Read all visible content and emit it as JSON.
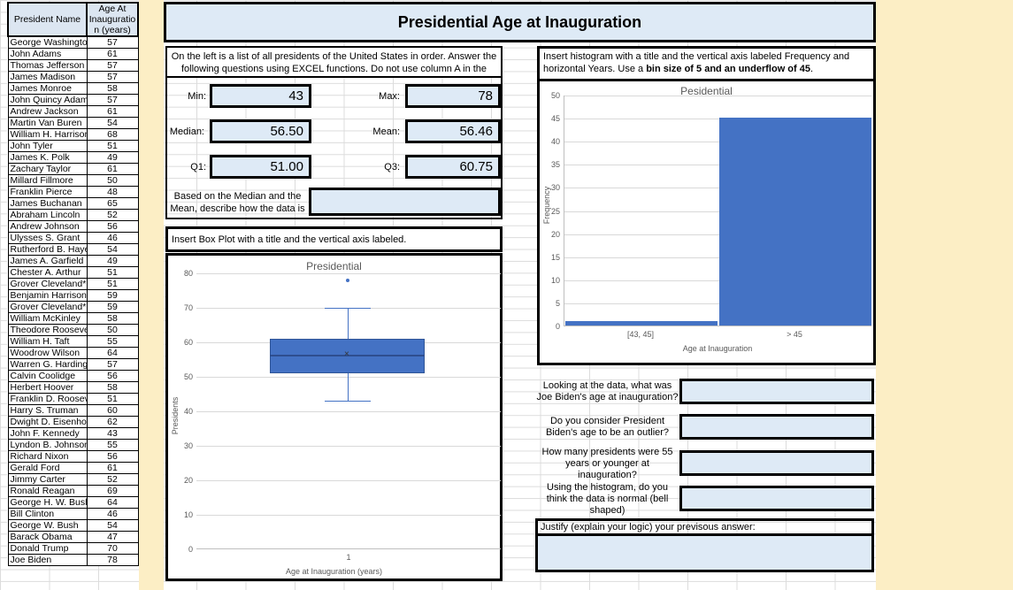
{
  "sheet": {
    "title": "Presidential Age at Inauguration"
  },
  "table": {
    "headers": [
      "President Name",
      "Age At Inauguration (years)"
    ],
    "rows": [
      [
        "George Washington",
        "57"
      ],
      [
        "John Adams",
        "61"
      ],
      [
        "Thomas Jefferson",
        "57"
      ],
      [
        "James Madison",
        "57"
      ],
      [
        "James Monroe",
        "58"
      ],
      [
        "John Quincy Adams",
        "57"
      ],
      [
        "Andrew Jackson",
        "61"
      ],
      [
        "Martin Van Buren",
        "54"
      ],
      [
        "William H. Harrison",
        "68"
      ],
      [
        "John Tyler",
        "51"
      ],
      [
        "James K. Polk",
        "49"
      ],
      [
        "Zachary Taylor",
        "61"
      ],
      [
        "Millard Fillmore",
        "50"
      ],
      [
        "Franklin Pierce",
        "48"
      ],
      [
        "James Buchanan",
        "65"
      ],
      [
        "Abraham Lincoln",
        "52"
      ],
      [
        "Andrew Johnson",
        "56"
      ],
      [
        "Ulysses S. Grant",
        "46"
      ],
      [
        "Rutherford B. Hayes",
        "54"
      ],
      [
        "James A. Garfield",
        "49"
      ],
      [
        "Chester A. Arthur",
        "51"
      ],
      [
        "Grover Cleveland*",
        "51"
      ],
      [
        "Benjamin Harrison",
        "59"
      ],
      [
        "Grover Cleveland*",
        "59"
      ],
      [
        "William McKinley",
        "58"
      ],
      [
        "Theodore Roosevelt",
        "50"
      ],
      [
        "William H. Taft",
        "55"
      ],
      [
        "Woodrow Wilson",
        "64"
      ],
      [
        "Warren G. Harding",
        "57"
      ],
      [
        "Calvin Coolidge",
        "56"
      ],
      [
        "Herbert Hoover",
        "58"
      ],
      [
        "Franklin D. Roosevelt",
        "51"
      ],
      [
        "Harry S. Truman",
        "60"
      ],
      [
        "Dwight D. Eisenhower",
        "62"
      ],
      [
        "John F. Kennedy",
        "43"
      ],
      [
        "Lyndon B. Johnson",
        "55"
      ],
      [
        "Richard Nixon",
        "56"
      ],
      [
        "Gerald Ford",
        "61"
      ],
      [
        "Jimmy Carter",
        "52"
      ],
      [
        "Ronald Reagan",
        "69"
      ],
      [
        "George H. W. Bush",
        "64"
      ],
      [
        "Bill Clinton",
        "46"
      ],
      [
        "George W. Bush",
        "54"
      ],
      [
        "Barack Obama",
        "47"
      ],
      [
        "Donald Trump",
        "70"
      ],
      [
        "Joe Biden",
        "78"
      ]
    ]
  },
  "left_panel": {
    "instruction_line1": "On the left is a list of all presidents of the United States in order.   Answer the",
    "instruction_line2": "following questions using EXCEL functions.  Do not use column A in the",
    "stats": {
      "min_label": "Min:",
      "min_value": "43",
      "max_label": "Max:",
      "max_value": "78",
      "median_label": "Median:",
      "median_value": "56.50",
      "mean_label": "Mean:",
      "mean_value": "56.46",
      "q1_label": "Q1:",
      "q1_value": "51.00",
      "q3_label": "Q3:",
      "q3_value": "60.75"
    },
    "describe_prompt": "Based on the Median and the Mean, describe how the data is",
    "describe_answer": "",
    "boxplot_instruction": "Insert Box Plot with a title and the vertical axis labeled."
  },
  "right_panel": {
    "hist_instruction_part1": "Insert histogram with a title and the vertical axis labeled Frequency and horizontal Years.  Use a ",
    "hist_instruction_bold": "bin size of 5 and an underflow of 45",
    "hist_instruction_part2": ".",
    "questions": [
      {
        "label": "Looking at the data, what was Joe Biden's age at inauguration?",
        "answer": ""
      },
      {
        "label": "Do you consider President Biden's age to be an outlier?",
        "answer": ""
      },
      {
        "label": "How many presidents were 55 years or younger at inauguration?",
        "answer": ""
      },
      {
        "label": "Using the histogram, do you think the data is normal (bell shaped)",
        "answer": ""
      }
    ],
    "justify_label": "Justify (explain your logic) your previsous answer:",
    "justify_answer": ""
  },
  "chart_data": [
    {
      "type": "boxplot",
      "title": "Presidential",
      "ylabel": "Presidents",
      "xlabel": "Age at Inauguration (years)",
      "x_tick_label": "1",
      "ylim": [
        0,
        80
      ],
      "ytick_step": 10,
      "min": 43,
      "q1": 51,
      "median": 56.5,
      "mean": 56.46,
      "q3": 61,
      "max": 70,
      "outliers": [
        78
      ],
      "color": "#4472C4"
    },
    {
      "type": "bar",
      "subtype": "histogram",
      "title": "Pesidential",
      "ylabel": "Frequency",
      "xlabel": "Age at Inauguration",
      "categories": [
        "[43, 45]",
        "> 45"
      ],
      "values": [
        1,
        45
      ],
      "ylim": [
        0,
        50
      ],
      "ytick_step": 5,
      "color": "#4472C4"
    }
  ],
  "colors": {
    "accent_blue": "#4472C4",
    "fill_blue": "#DEEAF6",
    "header_blue": "#DCE6F1",
    "sheet_yellow": "#FCEEC5",
    "chart_text": "#595959"
  }
}
